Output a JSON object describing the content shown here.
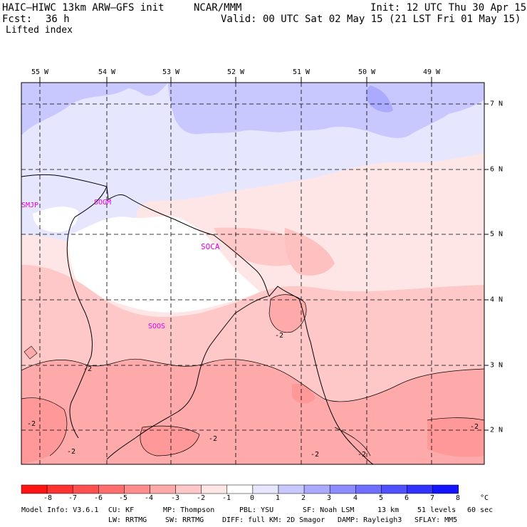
{
  "header": {
    "title": "HAIC–HIWC 13km ARW–GFS init",
    "org": "NCAR/MMM",
    "init": "Init: 12 UTC Thu 30 Apr 15",
    "fcst_label": "Fcst:",
    "fcst_value": "36 h",
    "valid": "Valid: 00 UTC Sat 02 May 15 (21 LST Fri 01 May 15)",
    "field": "Lifted index"
  },
  "map": {
    "lon_labels": [
      "55 W",
      "54 W",
      "53 W",
      "52 W",
      "51 W",
      "50 W",
      "49 W"
    ],
    "lat_labels": [
      "7 N",
      "6 N",
      "5 N",
      "4 N",
      "3 N",
      "2 N"
    ],
    "stations": [
      "SMJP",
      "SOGM",
      "SOCA",
      "SOOS"
    ],
    "contour_labels": [
      "-2",
      "-2",
      "-2",
      "-2",
      "-2",
      "-2",
      "-2",
      "-2"
    ],
    "station_color": "#e000e0"
  },
  "colorbar": {
    "labels": [
      "-8",
      "-7",
      "-6",
      "-5",
      "-4",
      "-3",
      "-2",
      "-1",
      "0",
      "1",
      "2",
      "3",
      "4",
      "5",
      "6",
      "7",
      "8",
      "°C"
    ],
    "colors": [
      "#ff1414",
      "#ff3232",
      "#ff5050",
      "#ff6e6e",
      "#ff8c8c",
      "#ffaaaa",
      "#ffc8c8",
      "#ffe6e6",
      "#ffffff",
      "#e6e6ff",
      "#c8c8ff",
      "#aaaaff",
      "#8c8cff",
      "#6e6eff",
      "#5050ff",
      "#3232ff",
      "#1414ff"
    ]
  },
  "footer": {
    "line1": [
      "Model Info: V3.6.1",
      "CU: KF",
      "MP: Thompson",
      "PBL: YSU",
      "SF: Noah LSM",
      "13 km",
      "51 levels",
      "60 sec"
    ],
    "line2": [
      "LW: RRTMG",
      "SW: RRTMG",
      "DIFF: full",
      "KM: 2D Smagor",
      "DAMP: Rayleigh3",
      "SFLAY: MM5"
    ]
  }
}
